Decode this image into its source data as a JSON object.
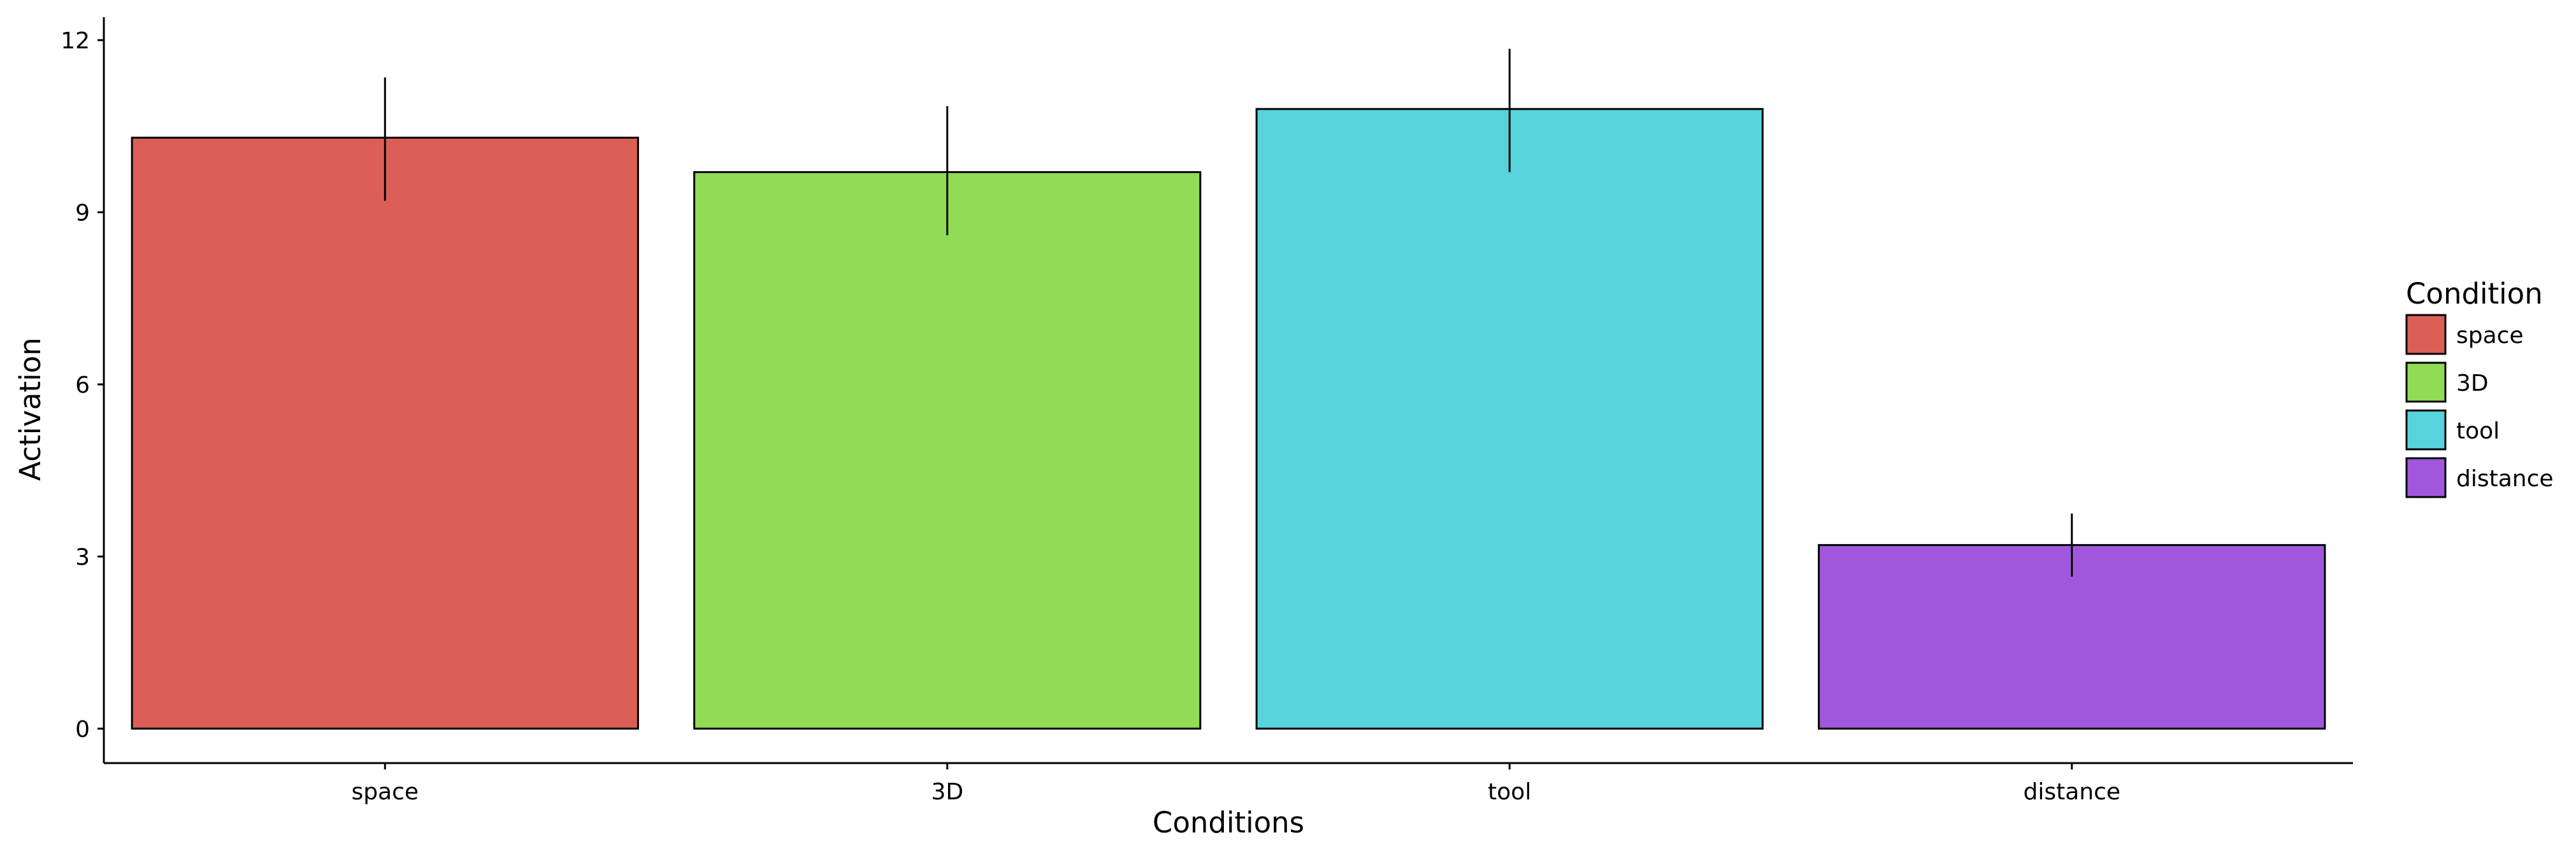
{
  "chart_data": {
    "type": "bar",
    "title": "",
    "xlabel": "Conditions",
    "ylabel": "Activation",
    "categories": [
      "space",
      "3D",
      "tool",
      "distance"
    ],
    "values": [
      10.3,
      9.7,
      10.8,
      3.2
    ],
    "error_low": [
      9.2,
      8.6,
      9.7,
      2.65
    ],
    "error_high": [
      11.35,
      10.85,
      11.85,
      3.75
    ],
    "colors": [
      "#DB5F57",
      "#91DB57",
      "#57D3DB",
      "#A157DB"
    ],
    "ylim": [
      -0.6,
      12.4
    ],
    "yticks": [
      0,
      3,
      6,
      9,
      12
    ],
    "grid": false,
    "legend": {
      "title": "Condition",
      "position": "right",
      "entries": [
        "space",
        "3D",
        "tool",
        "distance"
      ]
    }
  }
}
